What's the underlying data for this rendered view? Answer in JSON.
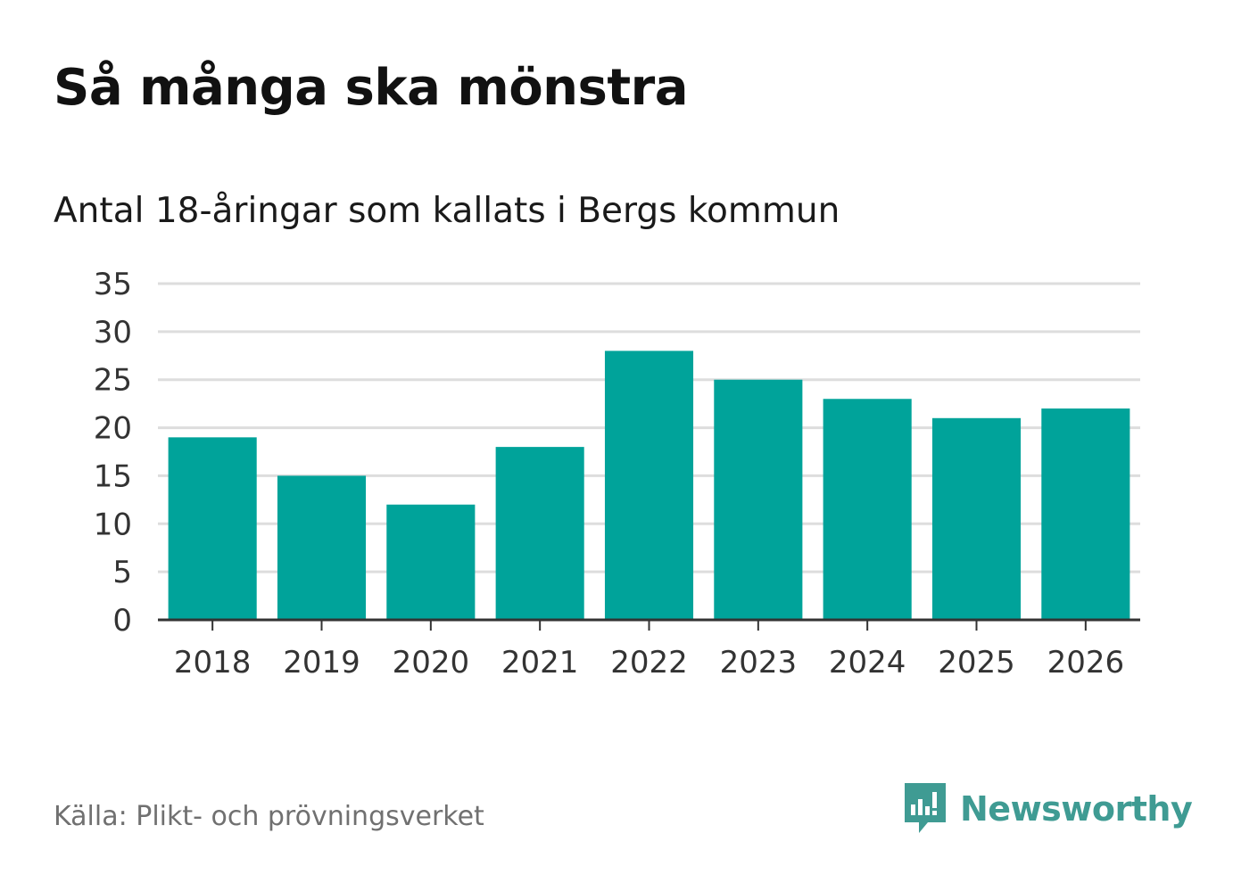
{
  "title": "Så många ska mönstra",
  "subtitle": "Antal 18-åringar som kallats i Bergs kommun",
  "source": "Källa: Plikt- och prövningsverket",
  "brand": {
    "name": "Newsworthy",
    "icon": "newsworthy-logo-icon",
    "color": "#3f9b93"
  },
  "colors": {
    "bar": "#00a39a",
    "grid": "#dddddd",
    "axis": "#333333"
  },
  "chart_data": {
    "type": "bar",
    "title": "Antal 18-åringar som kallats i Bergs kommun",
    "xlabel": "",
    "ylabel": "",
    "categories": [
      "2018",
      "2019",
      "2020",
      "2021",
      "2022",
      "2023",
      "2024",
      "2025",
      "2026"
    ],
    "values": [
      19,
      15,
      12,
      18,
      28,
      25,
      23,
      21,
      22
    ],
    "ylim": [
      0,
      35
    ],
    "yticks": [
      0,
      5,
      10,
      15,
      20,
      25,
      30,
      35
    ],
    "grid": true
  }
}
